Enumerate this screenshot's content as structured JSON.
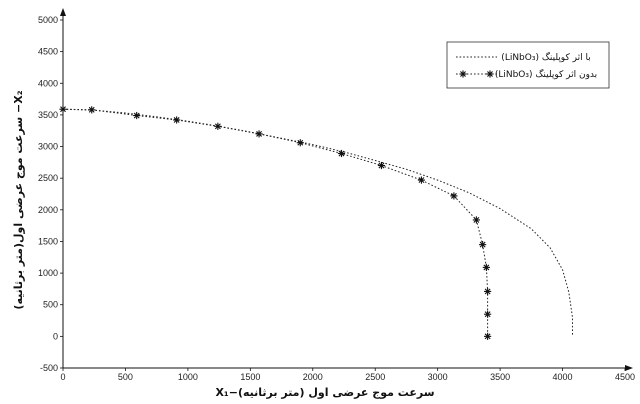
{
  "chart_data": {
    "type": "line",
    "xlabel": "سرعت موج عرضی اول (متر برثانیه)−X₁",
    "ylabel": "X₂− سرعت موج عرضی اول(متر برثانیه)",
    "xlim": [
      0,
      4500
    ],
    "ylim": [
      -500,
      5000
    ],
    "x_ticks": [
      "0",
      "500",
      "1000",
      "1500",
      "2000",
      "2500",
      "3000",
      "3500",
      "4000",
      "4500"
    ],
    "y_ticks": [
      "-500",
      "0",
      "500",
      "1000",
      "1500",
      "2000",
      "2500",
      "3000",
      "3500",
      "4000",
      "4500",
      "5000"
    ],
    "grid": false,
    "legend_position": "top-right",
    "series": [
      {
        "name": "با اثر کوپلینگ (LiNbO₃)",
        "style": "dotted",
        "color": "#222222",
        "points": [
          [
            0,
            3590
          ],
          [
            250,
            3575
          ],
          [
            500,
            3530
          ],
          [
            750,
            3470
          ],
          [
            1000,
            3400
          ],
          [
            1250,
            3320
          ],
          [
            1500,
            3230
          ],
          [
            1750,
            3130
          ],
          [
            2000,
            3030
          ],
          [
            2250,
            2915
          ],
          [
            2500,
            2780
          ],
          [
            2750,
            2640
          ],
          [
            3000,
            2470
          ],
          [
            3250,
            2270
          ],
          [
            3500,
            2020
          ],
          [
            3750,
            1700
          ],
          [
            3900,
            1400
          ],
          [
            4000,
            1050
          ],
          [
            4050,
            700
          ],
          [
            4080,
            300
          ],
          [
            4080,
            0
          ]
        ]
      },
      {
        "name": "بدون اثر کوپلینگ (LiNbO₃)",
        "style": "dotted-star",
        "color": "#222222",
        "points": [
          [
            0,
            3590
          ],
          [
            230,
            3580
          ],
          [
            590,
            3490
          ],
          [
            910,
            3420
          ],
          [
            1240,
            3320
          ],
          [
            1570,
            3200
          ],
          [
            1900,
            3060
          ],
          [
            2230,
            2890
          ],
          [
            2550,
            2700
          ],
          [
            2870,
            2470
          ],
          [
            3130,
            2220
          ],
          [
            3310,
            1840
          ],
          [
            3360,
            1450
          ],
          [
            3390,
            1090
          ],
          [
            3400,
            710
          ],
          [
            3400,
            350
          ],
          [
            3400,
            0
          ]
        ]
      }
    ]
  },
  "colors": {
    "axis": "#111111",
    "series": "#222222",
    "background": "#ffffff"
  }
}
